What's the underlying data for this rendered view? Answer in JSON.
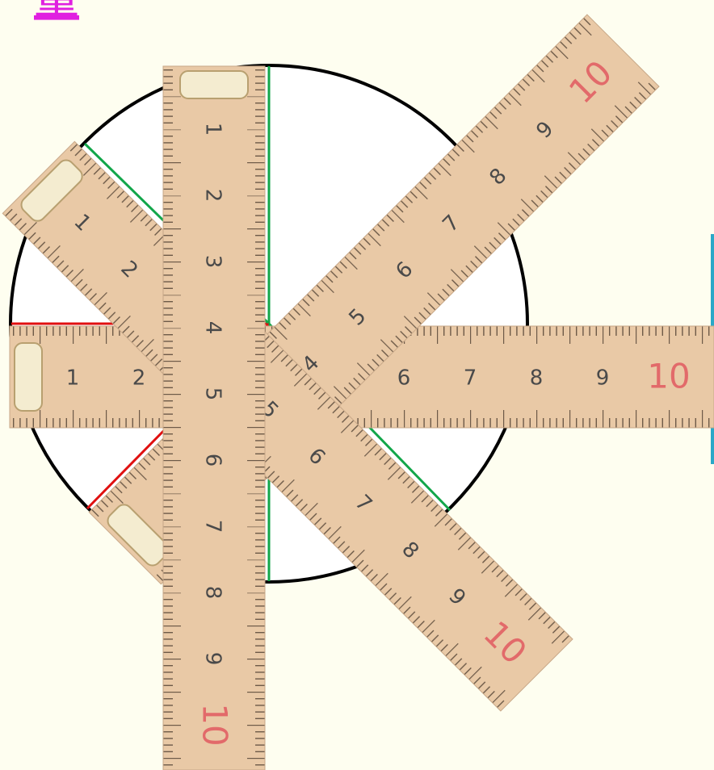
{
  "header": {
    "text": "量"
  },
  "rulers": [
    {
      "labels": [
        "1",
        "2",
        "6",
        "7",
        "8",
        "9",
        "10"
      ]
    },
    {
      "labels": [
        "4",
        "5",
        "6",
        "7",
        "8",
        "9",
        "10"
      ]
    },
    {
      "labels": [
        "1",
        "2",
        "5",
        "6",
        "7",
        "8",
        "9",
        "10"
      ]
    },
    {
      "labels": [
        "1",
        "2",
        "3",
        "4",
        "5",
        "6",
        "7",
        "8",
        "9",
        "10"
      ]
    }
  ]
}
